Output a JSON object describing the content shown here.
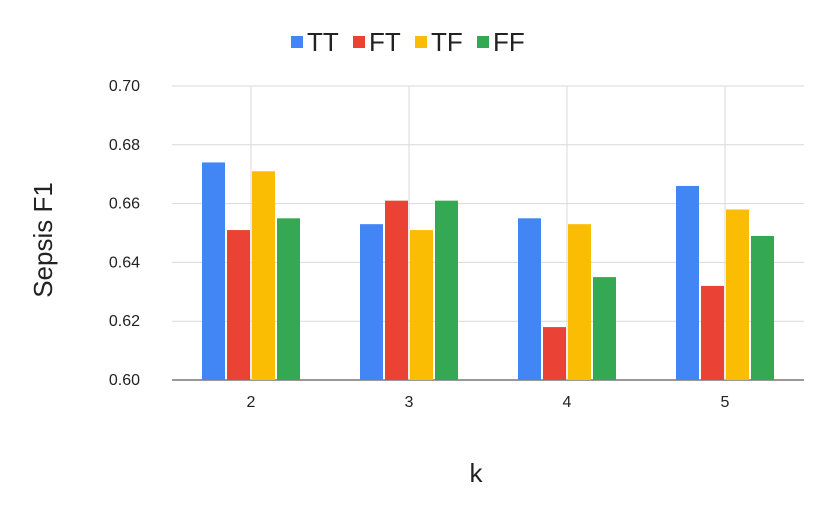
{
  "chart_data": {
    "type": "bar",
    "categories": [
      "2",
      "3",
      "4",
      "5"
    ],
    "series": [
      {
        "name": "TT",
        "color": "#4285F4",
        "values": [
          0.674,
          0.653,
          0.655,
          0.666
        ]
      },
      {
        "name": "FT",
        "color": "#EA4335",
        "values": [
          0.651,
          0.661,
          0.618,
          0.632
        ]
      },
      {
        "name": "TF",
        "color": "#FBBC04",
        "values": [
          0.671,
          0.651,
          0.653,
          0.658
        ]
      },
      {
        "name": "FF",
        "color": "#34A853",
        "values": [
          0.655,
          0.661,
          0.635,
          0.649
        ]
      }
    ],
    "xlabel": "k",
    "ylabel": "Sepsis F1",
    "ylim": [
      0.6,
      0.7
    ],
    "yticks": [
      "0.60",
      "0.62",
      "0.64",
      "0.66",
      "0.68",
      "0.70"
    ],
    "grid": true,
    "legend_position": "top"
  }
}
